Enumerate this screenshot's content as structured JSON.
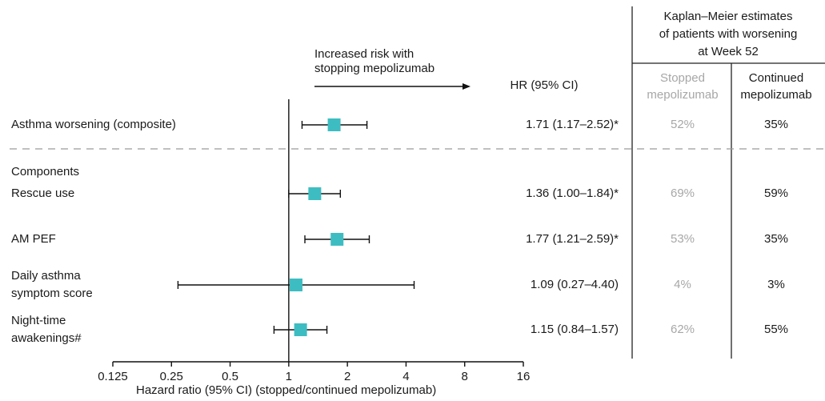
{
  "chart_data": {
    "type": "forest",
    "x_scale": "log2",
    "xlim": [
      0.125,
      16
    ],
    "x_ticks": [
      "0.125",
      "0.25",
      "0.5",
      "1",
      "2",
      "4",
      "8",
      "16"
    ],
    "xlabel": "Hazard ratio (95% CI) (stopped/continued mepolizumab)",
    "reference_line": 1,
    "arrow_annotation": [
      "Increased risk with",
      "stopping mepolizumab"
    ],
    "hr_header": "HR (95% CI)",
    "km_header": [
      "Kaplan–Meier estimates",
      "of patients with worsening",
      "at Week 52"
    ],
    "col_stopped": [
      "Stopped",
      "mepolizumab"
    ],
    "col_continued": [
      "Continued",
      "mepolizumab"
    ],
    "section_label": "Components",
    "marker_color": "#3dbdc1",
    "rows": [
      {
        "label": [
          "Asthma worsening (composite)"
        ],
        "hr": 1.71,
        "lo": 1.17,
        "hi": 2.52,
        "hr_text": "1.71 (1.17–2.52)*",
        "stopped": "52%",
        "continued": "35%"
      },
      {
        "label": [
          "Rescue use"
        ],
        "hr": 1.36,
        "lo": 1.0,
        "hi": 1.84,
        "hr_text": "1.36 (1.00–1.84)*",
        "stopped": "69%",
        "continued": "59%"
      },
      {
        "label": [
          "AM PEF"
        ],
        "hr": 1.77,
        "lo": 1.21,
        "hi": 2.59,
        "hr_text": "1.77 (1.21–2.59)*",
        "stopped": "53%",
        "continued": "35%"
      },
      {
        "label": [
          "Daily asthma",
          "symptom score"
        ],
        "hr": 1.09,
        "lo": 0.27,
        "hi": 4.4,
        "hr_text": "1.09 (0.27–4.40)",
        "stopped": "4%",
        "continued": "3%"
      },
      {
        "label": [
          "Night-time",
          "awakenings#"
        ],
        "hr": 1.15,
        "lo": 0.84,
        "hi": 1.57,
        "hr_text": "1.15 (0.84–1.57)",
        "stopped": "62%",
        "continued": "55%"
      }
    ]
  }
}
